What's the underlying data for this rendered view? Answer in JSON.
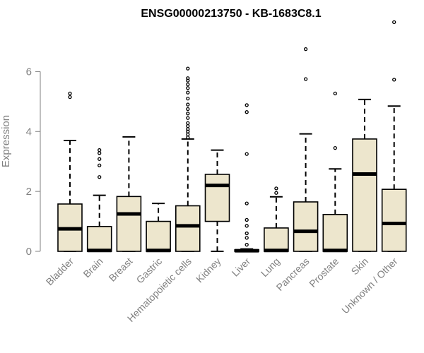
{
  "chart_data": {
    "type": "boxplot",
    "title": "ENSG00000213750 - KB-1683C8.1",
    "ylabel": "Expression",
    "ylim": [
      0,
      7.4
    ],
    "yticks": [
      "0",
      "2",
      "4",
      "6"
    ],
    "colors": {
      "box_fill": "#ede6cd",
      "stroke": "#000000",
      "axis": "#808080",
      "tick_text": "#808080"
    },
    "categories": [
      "Bladder",
      "Brain",
      "Breast",
      "Gastric",
      "Hematopoietic cells",
      "Kidney",
      "Liver",
      "Lung",
      "Pancreas",
      "Prostate",
      "Skin",
      "Unknown / Other"
    ],
    "boxes": [
      {
        "category": "Bladder",
        "q1": 0.0,
        "median": 0.75,
        "q3": 1.58,
        "whisker_low": 0.0,
        "whisker_high": 3.7,
        "outliers": [
          5.15,
          5.27
        ]
      },
      {
        "category": "Brain",
        "q1": 0.0,
        "median": 0.03,
        "q3": 0.83,
        "whisker_low": 0.0,
        "whisker_high": 1.87,
        "outliers": [
          2.48,
          2.87,
          3.08,
          3.28,
          3.38
        ]
      },
      {
        "category": "Breast",
        "q1": 0.0,
        "median": 1.25,
        "q3": 1.83,
        "whisker_low": 0.0,
        "whisker_high": 3.82,
        "outliers": []
      },
      {
        "category": "Gastric",
        "q1": 0.0,
        "median": 0.03,
        "q3": 1.0,
        "whisker_low": 0.0,
        "whisker_high": 1.6,
        "outliers": []
      },
      {
        "category": "Hematopoietic cells",
        "q1": 0.0,
        "median": 0.85,
        "q3": 1.52,
        "whisker_low": 0.0,
        "whisker_high": 3.75,
        "outliers": [
          3.8,
          3.9,
          4.0,
          4.08,
          4.18,
          4.28,
          4.45,
          4.6,
          4.75,
          4.9,
          5.1,
          5.3,
          5.45,
          5.57,
          5.7,
          5.78,
          6.1
        ]
      },
      {
        "category": "Kidney",
        "q1": 1.0,
        "median": 2.2,
        "q3": 2.57,
        "whisker_low": 0.0,
        "whisker_high": 3.38,
        "outliers": []
      },
      {
        "category": "Liver",
        "q1": 0.0,
        "median": 0.02,
        "q3": 0.05,
        "whisker_low": 0.0,
        "whisker_high": 0.08,
        "outliers": [
          0.22,
          0.45,
          0.6,
          0.85,
          1.05,
          1.6,
          3.25,
          4.65,
          4.88
        ]
      },
      {
        "category": "Lung",
        "q1": 0.0,
        "median": 0.03,
        "q3": 0.78,
        "whisker_low": 0.0,
        "whisker_high": 1.82,
        "outliers": [
          1.95,
          2.1
        ]
      },
      {
        "category": "Pancreas",
        "q1": 0.0,
        "median": 0.67,
        "q3": 1.65,
        "whisker_low": 0.0,
        "whisker_high": 3.92,
        "outliers": [
          5.75,
          6.75
        ]
      },
      {
        "category": "Prostate",
        "q1": 0.0,
        "median": 0.03,
        "q3": 1.23,
        "whisker_low": 0.0,
        "whisker_high": 2.75,
        "outliers": [
          3.45,
          5.27
        ]
      },
      {
        "category": "Skin",
        "q1": 0.0,
        "median": 2.58,
        "q3": 3.75,
        "whisker_low": 0.0,
        "whisker_high": 5.07,
        "outliers": []
      },
      {
        "category": "Unknown / Other",
        "q1": 0.0,
        "median": 0.93,
        "q3": 2.07,
        "whisker_low": 0.0,
        "whisker_high": 4.85,
        "outliers": [
          5.73,
          7.65
        ]
      }
    ]
  }
}
